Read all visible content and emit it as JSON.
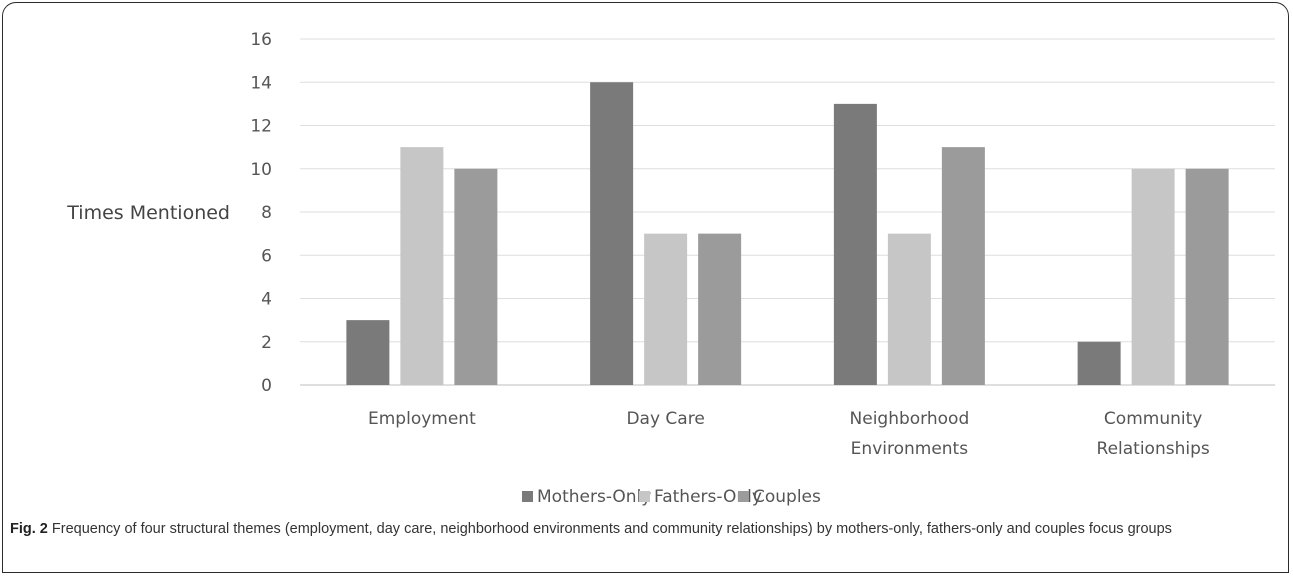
{
  "chart_data": {
    "type": "bar",
    "title": "",
    "xlabel": "",
    "ylabel": "Times Mentioned",
    "ylim": [
      0,
      16
    ],
    "yticks": [
      0,
      2,
      4,
      6,
      8,
      10,
      12,
      14,
      16
    ],
    "grid": true,
    "legend_position": "bottom",
    "categories": [
      [
        "Employment"
      ],
      [
        "Day Care"
      ],
      [
        "Neighborhood",
        "Environments"
      ],
      [
        "Community",
        "Relationships"
      ]
    ],
    "series": [
      {
        "name": "Mothers-Only",
        "color": "#7a7a7a",
        "values": [
          3,
          14,
          13,
          2
        ]
      },
      {
        "name": "Fathers-Only",
        "color": "#c6c6c6",
        "values": [
          11,
          7,
          7,
          10
        ]
      },
      {
        "name": "Couples",
        "color": "#9b9b9b",
        "values": [
          10,
          7,
          11,
          10
        ]
      }
    ]
  },
  "caption": {
    "label": "Fig. 2",
    "text": "Frequency of four structural themes (employment, day care, neighborhood environments and community relationships) by mothers-only, fathers-only and couples focus groups"
  }
}
